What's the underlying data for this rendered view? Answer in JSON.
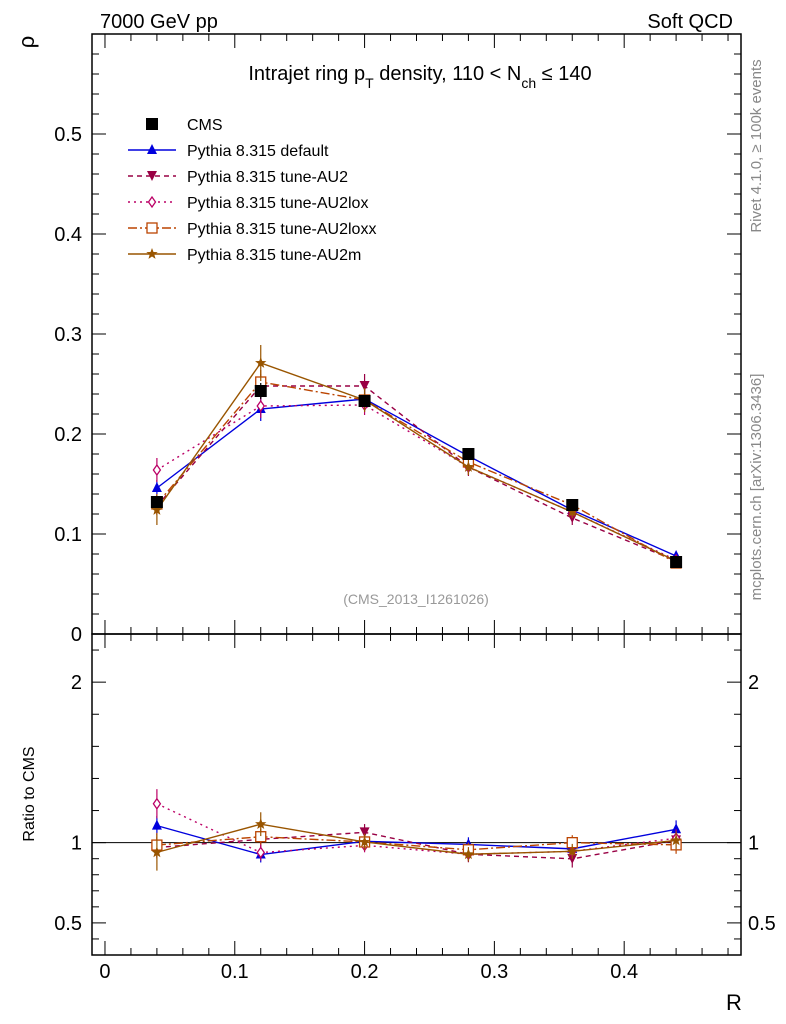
{
  "header": {
    "left": "7000 GeV pp",
    "right": "Soft QCD"
  },
  "side_text": {
    "rivet": "Rivet 4.1.0, ≥ 100k events",
    "mcplots": "mcplots.cern.ch [arXiv:1306.3436]"
  },
  "colors": {
    "cms": "#000000",
    "default": "#0000dd",
    "au2": "#990044",
    "au2lox": "#bb0066",
    "au2loxx": "#bb4400",
    "au2m": "#995500",
    "ratio_line": "#000000",
    "side_text": "#888888"
  },
  "chart_data": {
    "type": "line",
    "title": {
      "pre": "Intrajet ring p",
      "sub1": "T",
      "mid": " density, 110 < N",
      "sub2": "ch",
      "post": " ≤ 140"
    },
    "analysis_label": "(CMS_2013_I1261026)",
    "xlabel": "R",
    "ylabel": "ρ",
    "ratio_ylabel": "Ratio to CMS",
    "xlim": [
      -0.01,
      0.49
    ],
    "ylim": [
      0,
      0.6
    ],
    "ratio_ylim": [
      0.3,
      2.3
    ],
    "x_ticks": [
      0,
      0.1,
      0.2,
      0.3,
      0.4
    ],
    "x_tick_labels": [
      "0",
      "0.1",
      "0.2",
      "0.3",
      "0.4"
    ],
    "y_ticks": [
      0,
      0.1,
      0.2,
      0.3,
      0.4,
      0.5
    ],
    "y_tick_labels": [
      "0",
      "0.1",
      "0.2",
      "0.3",
      "0.4",
      "0.5"
    ],
    "ratio_ticks": [
      0.5,
      1,
      2
    ],
    "ratio_tick_labels": [
      "0.5",
      "1",
      "2"
    ],
    "x": [
      0.04,
      0.12,
      0.2,
      0.28,
      0.36,
      0.44
    ],
    "series": [
      {
        "key": "cms",
        "name": "CMS",
        "marker": "square",
        "dash": "",
        "values": [
          0.132,
          0.243,
          0.233,
          0.18,
          0.129,
          0.072
        ],
        "errors": [
          0.006,
          0.008,
          0.006,
          0.005,
          0.004,
          0.003
        ]
      },
      {
        "key": "default",
        "name": "Pythia 8.315 default",
        "marker": "triangle-up",
        "dash": "",
        "values": [
          0.146,
          0.225,
          0.235,
          0.178,
          0.124,
          0.078
        ],
        "errors": [
          0.008,
          0.012,
          0.01,
          0.008,
          0.006,
          0.004
        ]
      },
      {
        "key": "au2",
        "name": "Pythia 8.315 tune-AU2",
        "marker": "triangle-down",
        "dash": "5,4",
        "values": [
          0.128,
          0.248,
          0.248,
          0.167,
          0.116,
          0.073
        ],
        "errors": [
          0.009,
          0.012,
          0.012,
          0.009,
          0.007,
          0.004
        ]
      },
      {
        "key": "au2lox",
        "name": "Pythia 8.315 tune-AU2lox",
        "marker": "diamond-open",
        "dash": "2,4",
        "values": [
          0.164,
          0.228,
          0.229,
          0.167,
          0.122,
          0.074
        ],
        "errors": [
          0.012,
          0.012,
          0.01,
          0.008,
          0.006,
          0.004
        ]
      },
      {
        "key": "au2loxx",
        "name": "Pythia 8.315 tune-AU2loxx",
        "marker": "square-open",
        "dash": "9,3,2,3",
        "values": [
          0.13,
          0.252,
          0.234,
          0.172,
          0.129,
          0.071
        ],
        "errors": [
          0.01,
          0.012,
          0.01,
          0.008,
          0.006,
          0.004
        ]
      },
      {
        "key": "au2m",
        "name": "Pythia 8.315 tune-AU2m",
        "marker": "star",
        "dash": "",
        "values": [
          0.124,
          0.271,
          0.234,
          0.167,
          0.122,
          0.073
        ],
        "errors": [
          0.015,
          0.018,
          0.012,
          0.008,
          0.006,
          0.004
        ]
      }
    ]
  }
}
